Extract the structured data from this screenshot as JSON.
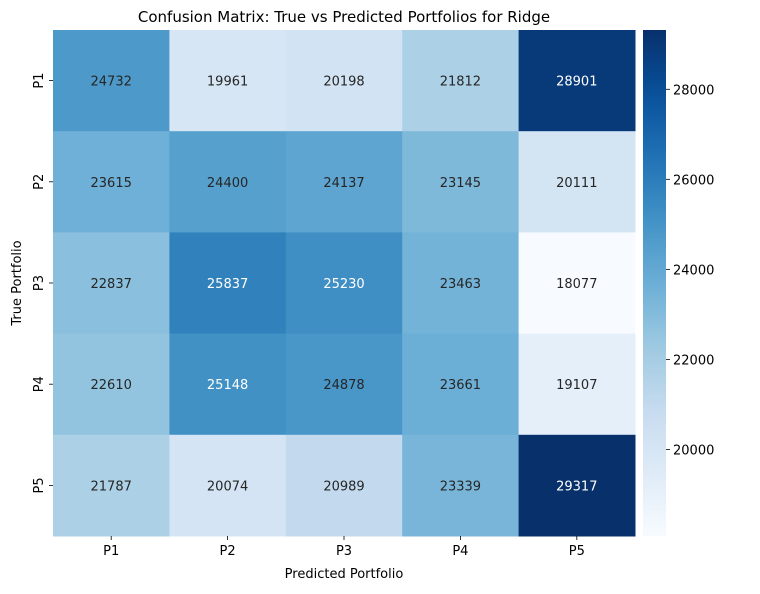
{
  "chart_data": {
    "type": "heatmap",
    "title": "Confusion Matrix: True vs Predicted Portfolios for Ridge",
    "xlabel": "Predicted Portfolio",
    "ylabel": "True Portfolio",
    "x_categories": [
      "P1",
      "P2",
      "P3",
      "P4",
      "P5"
    ],
    "y_categories": [
      "P1",
      "P2",
      "P3",
      "P4",
      "P5"
    ],
    "values": [
      [
        24732,
        19961,
        20198,
        21812,
        28901
      ],
      [
        23615,
        24400,
        24137,
        23145,
        20111
      ],
      [
        22837,
        25837,
        25230,
        23463,
        18077
      ],
      [
        22610,
        25148,
        24878,
        23661,
        19107
      ],
      [
        21787,
        20074,
        20989,
        23339,
        29317
      ]
    ],
    "colormap": "Blues",
    "colorbar": {
      "range": [
        18077,
        29317
      ],
      "ticks": [
        20000,
        22000,
        24000,
        26000,
        28000
      ],
      "tick_labels": [
        "20000",
        "22000",
        "24000",
        "26000",
        "28000"
      ]
    },
    "colors": {
      "low": "#f7fbff",
      "high": "#08306b",
      "text_dark": "#262626",
      "text_light": "#ffffff"
    }
  }
}
